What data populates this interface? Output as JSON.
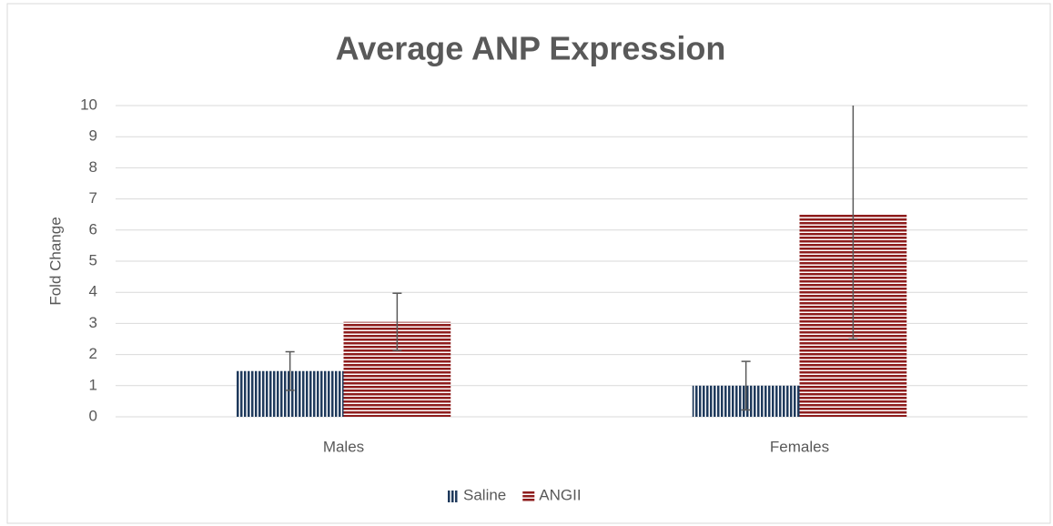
{
  "chart_data": {
    "type": "bar",
    "title": "Average ANP Expression",
    "y_label": "Fold Change",
    "categories": [
      "Males",
      "Females"
    ],
    "series": [
      {
        "name": "Saline",
        "color": "#1f3a5c",
        "pattern": "vertical",
        "values": [
          1.47,
          1.0
        ],
        "errors": [
          0.62,
          0.78
        ]
      },
      {
        "name": "ANGII",
        "color": "#8e1c1c",
        "pattern": "horizontal",
        "values": [
          3.05,
          6.5
        ],
        "errors": [
          0.92,
          4.0
        ]
      }
    ],
    "ylim": [
      0,
      10
    ],
    "yticks": [
      0,
      1,
      2,
      3,
      4,
      5,
      6,
      7,
      8,
      9,
      10
    ],
    "grid": true,
    "legend": "bottom"
  }
}
